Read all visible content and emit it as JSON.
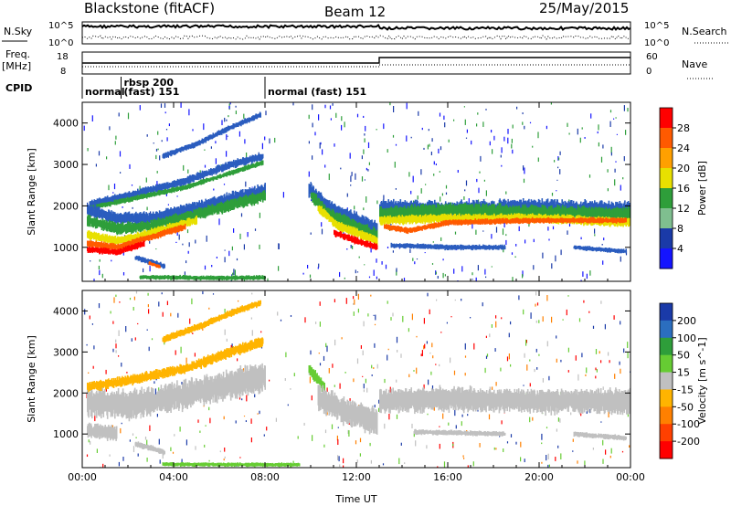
{
  "header": {
    "station": "Blackstone (fitACF)",
    "beam": "Beam 12",
    "date": "25/May/2015"
  },
  "noise_panel": {
    "left_label": "N.Sky",
    "right_label": "N.Search",
    "left_ticks": [
      "10^5",
      "10^0"
    ],
    "right_ticks": [
      "10^5",
      "10^0"
    ]
  },
  "freq_panel": {
    "left_label": "Freq.",
    "left_unit": "[MHz]",
    "right_label": "Nave",
    "left_ticks": [
      "18",
      "8"
    ],
    "right_ticks": [
      "60",
      "0"
    ]
  },
  "cpid": {
    "label": "CPID",
    "segments": [
      {
        "start_hour": 0.0,
        "text": "normal",
        "text2": ""
      },
      {
        "start_hour": 1.7,
        "text": "rbsp 200",
        "text2": "(fast) 151"
      },
      {
        "start_hour": 8.0,
        "text": "normal (fast)  151",
        "text2": ""
      }
    ]
  },
  "chart_data": [
    {
      "type": "heatmap",
      "name": "power",
      "ylabel": "Slant Range [km]",
      "xlabel": "",
      "x_ticks": [
        "00:00",
        "04:00",
        "08:00",
        "12:00",
        "16:00",
        "20:00",
        "00:00"
      ],
      "xlim_hours": [
        0,
        24
      ],
      "ylim": [
        180,
        4500
      ],
      "y_ticks": [
        1000,
        2000,
        3000,
        4000
      ],
      "colorbar": {
        "label": "Power [dB]",
        "tick_labels": [
          "28",
          "24",
          "20",
          "16",
          "12",
          "8",
          "4"
        ],
        "colors": [
          "#ff0000",
          "#ff5a00",
          "#ffa000",
          "#e8e000",
          "#2e9e3a",
          "#7fbf8f",
          "#1a3aa8",
          "#1414ff"
        ]
      },
      "bands": [
        {
          "color": "#2b5dbf",
          "points": [
            [
              0.3,
              2050
            ],
            [
              2.0,
              2250
            ],
            [
              4.5,
              2600
            ],
            [
              6.5,
              3000
            ],
            [
              7.9,
              3200
            ]
          ],
          "width": 140
        },
        {
          "color": "#2e9e3a",
          "points": [
            [
              0.3,
              1950
            ],
            [
              2.0,
              2150
            ],
            [
              4.5,
              2450
            ],
            [
              6.5,
              2800
            ],
            [
              7.9,
              3050
            ]
          ],
          "width": 90
        },
        {
          "color": "#2b5dbf",
          "points": [
            [
              3.5,
              3200
            ],
            [
              5.0,
              3500
            ],
            [
              6.5,
              3900
            ],
            [
              7.8,
              4200
            ]
          ],
          "width": 100
        },
        {
          "color": "#2b5dbf",
          "points": [
            [
              0.2,
              1900
            ],
            [
              1.5,
              1700
            ],
            [
              3.0,
              1700
            ],
            [
              5.0,
              1950
            ],
            [
              7.0,
              2250
            ],
            [
              8.0,
              2400
            ]
          ],
          "width": 220
        },
        {
          "color": "#2e9e3a",
          "points": [
            [
              0.2,
              1650
            ],
            [
              1.5,
              1450
            ],
            [
              3.0,
              1520
            ],
            [
              5.0,
              1800
            ],
            [
              7.0,
              2100
            ],
            [
              8.0,
              2250
            ]
          ],
          "width": 200
        },
        {
          "color": "#e8e000",
          "points": [
            [
              0.2,
              1300
            ],
            [
              1.5,
              1150
            ],
            [
              3.0,
              1350
            ],
            [
              5.0,
              1650
            ]
          ],
          "width": 150
        },
        {
          "color": "#ff5a00",
          "points": [
            [
              0.2,
              1100
            ],
            [
              1.5,
              1000
            ],
            [
              3.0,
              1250
            ],
            [
              4.5,
              1500
            ]
          ],
          "width": 120
        },
        {
          "color": "#ff0000",
          "points": [
            [
              0.2,
              950
            ],
            [
              1.5,
              880
            ],
            [
              2.7,
              1100
            ]
          ],
          "width": 110
        },
        {
          "color": "#2b5dbf",
          "points": [
            [
              2.3,
              750
            ],
            [
              3.0,
              640
            ],
            [
              3.6,
              540
            ]
          ],
          "width": 100
        },
        {
          "color": "#ff5a00",
          "points": [
            [
              2.9,
              620
            ],
            [
              3.4,
              520
            ]
          ],
          "width": 60
        },
        {
          "color": "#2b5dbf",
          "points": [
            [
              9.9,
              2400
            ],
            [
              10.8,
              1950
            ],
            [
              11.8,
              1700
            ],
            [
              12.9,
              1450
            ]
          ],
          "width": 260
        },
        {
          "color": "#2e9e3a",
          "points": [
            [
              10.0,
              2250
            ],
            [
              10.8,
              1800
            ],
            [
              11.8,
              1550
            ],
            [
              12.9,
              1300
            ]
          ],
          "width": 200
        },
        {
          "color": "#e8e000",
          "points": [
            [
              10.3,
              1950
            ],
            [
              11.2,
              1500
            ],
            [
              12.0,
              1350
            ],
            [
              12.9,
              1150
            ]
          ],
          "width": 160
        },
        {
          "color": "#ff0000",
          "points": [
            [
              11.0,
              1350
            ],
            [
              12.0,
              1150
            ],
            [
              12.9,
              1000
            ]
          ],
          "width": 120
        },
        {
          "color": "#2b5dbf",
          "points": [
            [
              13.0,
              1950
            ],
            [
              16.0,
              1900
            ],
            [
              20.0,
              1950
            ],
            [
              24.0,
              1900
            ]
          ],
          "width": 300
        },
        {
          "color": "#2e9e3a",
          "points": [
            [
              13.0,
              1800
            ],
            [
              16.0,
              1900
            ],
            [
              20.0,
              1850
            ],
            [
              24.0,
              1800
            ]
          ],
          "width": 240
        },
        {
          "color": "#e8e000",
          "points": [
            [
              13.0,
              1650
            ],
            [
              16.0,
              1700
            ],
            [
              20.0,
              1700
            ],
            [
              24.0,
              1600
            ]
          ],
          "width": 160
        },
        {
          "color": "#ff5a00",
          "points": [
            [
              13.2,
              1500
            ],
            [
              14.3,
              1400
            ],
            [
              16.0,
              1600
            ],
            [
              20.0,
              1650
            ],
            [
              23.8,
              1650
            ]
          ],
          "width": 100
        },
        {
          "color": "#2b5dbf",
          "points": [
            [
              13.5,
              1050
            ],
            [
              16.0,
              1000
            ],
            [
              18.5,
              1000
            ]
          ],
          "width": 90
        },
        {
          "color": "#2b5dbf",
          "points": [
            [
              21.5,
              1000
            ],
            [
              23.8,
              900
            ]
          ],
          "width": 80
        },
        {
          "color": "#2e9e3a",
          "points": [
            [
              2.5,
              280
            ],
            [
              6.0,
              260
            ],
            [
              8.0,
              270
            ]
          ],
          "width": 80
        }
      ]
    },
    {
      "type": "heatmap",
      "name": "velocity",
      "ylabel": "Slant Range [km]",
      "xlabel": "Time UT",
      "x_ticks": [
        "00:00",
        "04:00",
        "08:00",
        "12:00",
        "16:00",
        "20:00",
        "00:00"
      ],
      "xlim_hours": [
        0,
        24
      ],
      "ylim": [
        180,
        4500
      ],
      "y_ticks": [
        1000,
        2000,
        3000,
        4000
      ],
      "colorbar": {
        "label": "Velocity [m s^-1]",
        "tick_labels": [
          "200",
          "100",
          "50",
          "15",
          "-15",
          "-50",
          "-100",
          "-200"
        ],
        "colors": [
          "#1a3aa8",
          "#2b6ebf",
          "#2e9e3a",
          "#66cc33",
          "#c0c0c0",
          "#ffb400",
          "#ff8000",
          "#ff4000",
          "#ff0000"
        ]
      },
      "bands": [
        {
          "color": "#c0c0c0",
          "points": [
            [
              0.2,
              1800
            ],
            [
              2.0,
              1700
            ],
            [
              4.0,
              1900
            ],
            [
              6.0,
              2150
            ],
            [
              8.0,
              2400
            ]
          ],
          "width": 500
        },
        {
          "color": "#ffb400",
          "points": [
            [
              0.2,
              2150
            ],
            [
              2.0,
              2300
            ],
            [
              4.5,
              2600
            ],
            [
              6.5,
              3000
            ],
            [
              7.9,
              3250
            ]
          ],
          "width": 180
        },
        {
          "color": "#ffb400",
          "points": [
            [
              3.5,
              3300
            ],
            [
              5.0,
              3600
            ],
            [
              6.5,
              3950
            ],
            [
              7.8,
              4200
            ]
          ],
          "width": 120
        },
        {
          "color": "#c0c0c0",
          "points": [
            [
              0.2,
              1100
            ],
            [
              1.5,
              1000
            ]
          ],
          "width": 250
        },
        {
          "color": "#c0c0c0",
          "points": [
            [
              2.3,
              760
            ],
            [
              3.0,
              650
            ],
            [
              3.6,
              550
            ]
          ],
          "width": 100
        },
        {
          "color": "#66cc33",
          "points": [
            [
              9.9,
              2600
            ],
            [
              10.6,
              2100
            ]
          ],
          "width": 200
        },
        {
          "color": "#c0c0c0",
          "points": [
            [
              10.3,
              1900
            ],
            [
              11.5,
              1550
            ],
            [
              12.9,
              1300
            ]
          ],
          "width": 450
        },
        {
          "color": "#c0c0c0",
          "points": [
            [
              13.0,
              1800
            ],
            [
              16.0,
              1850
            ],
            [
              20.0,
              1800
            ],
            [
              24.0,
              1800
            ]
          ],
          "width": 420
        },
        {
          "color": "#c0c0c0",
          "points": [
            [
              14.5,
              1050
            ],
            [
              18.5,
              1000
            ]
          ],
          "width": 90
        },
        {
          "color": "#c0c0c0",
          "points": [
            [
              21.5,
              1000
            ],
            [
              23.8,
              900
            ]
          ],
          "width": 90
        },
        {
          "color": "#66cc33",
          "points": [
            [
              3.5,
              260
            ],
            [
              9.5,
              250
            ]
          ],
          "width": 70
        }
      ]
    }
  ]
}
